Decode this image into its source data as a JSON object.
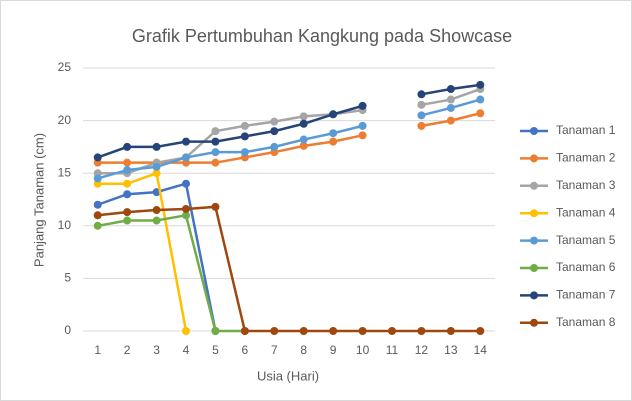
{
  "chart_data": {
    "type": "line",
    "title": "Grafik Pertumbuhan Kangkung pada Showcase",
    "x_label": "Usia (Hari)",
    "y_label": "Panjang Tanaman (cm)",
    "categories": [
      1,
      2,
      3,
      4,
      5,
      6,
      7,
      8,
      9,
      10,
      11,
      12,
      13,
      14
    ],
    "ylim": [
      0,
      25
    ],
    "yticks": [
      0,
      5,
      10,
      15,
      20,
      25
    ],
    "grid": true,
    "legend": "right",
    "series": [
      {
        "name": "Tanaman 1",
        "color": "#4472c4",
        "values": [
          12,
          13,
          13.2,
          14,
          0,
          null,
          null,
          null,
          null,
          null,
          null,
          null,
          null,
          null
        ]
      },
      {
        "name": "Tanaman 2",
        "color": "#ed7d31",
        "values": [
          16,
          16,
          16,
          16,
          16,
          16.5,
          17,
          17.6,
          18,
          18.6,
          null,
          19.5,
          20,
          20.7
        ]
      },
      {
        "name": "Tanaman 3",
        "color": "#a5a5a5",
        "values": [
          15,
          15,
          16,
          16.5,
          19,
          19.5,
          19.9,
          20.4,
          20.6,
          21,
          null,
          21.5,
          22,
          23
        ]
      },
      {
        "name": "Tanaman 4",
        "color": "#ffc000",
        "values": [
          14,
          14,
          15,
          0,
          null,
          null,
          null,
          null,
          null,
          null,
          null,
          null,
          null,
          null
        ]
      },
      {
        "name": "Tanaman 5",
        "color": "#5b9bd5",
        "values": [
          14.5,
          15.3,
          15.6,
          16.5,
          17,
          17,
          17.5,
          18.2,
          18.8,
          19.5,
          null,
          20.5,
          21.2,
          22
        ]
      },
      {
        "name": "Tanaman 6",
        "color": "#70ad47",
        "values": [
          10,
          10.5,
          10.5,
          11,
          0,
          0,
          null,
          null,
          null,
          null,
          null,
          null,
          null,
          null
        ]
      },
      {
        "name": "Tanaman 7",
        "color": "#264478",
        "values": [
          16.5,
          17.5,
          17.5,
          18,
          18,
          18.5,
          19,
          19.7,
          20.6,
          21.4,
          null,
          22.5,
          23,
          23.4
        ]
      },
      {
        "name": "Tanaman 8",
        "color": "#9e480e",
        "values": [
          11,
          11.3,
          11.5,
          11.6,
          11.8,
          0,
          0,
          0,
          0,
          0,
          0,
          0,
          0,
          0
        ]
      }
    ]
  }
}
